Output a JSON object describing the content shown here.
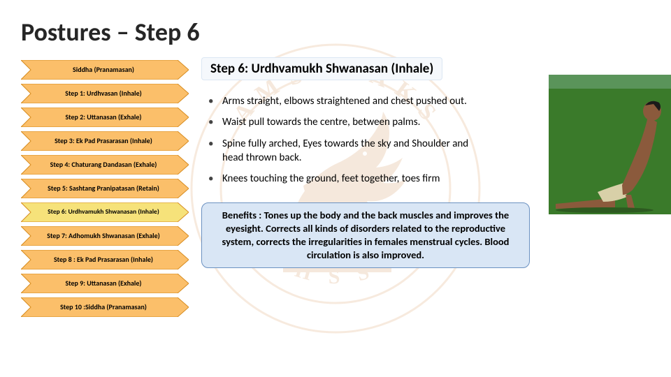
{
  "title": "Postures – Step 6",
  "nav": {
    "fill": "#fbbf6a",
    "stroke": "#d68b1e",
    "highlight_fill": "#f6e27a",
    "items": [
      {
        "label": "Siddha (Pranamasan)",
        "highlight": false
      },
      {
        "label": "Step 1: Urdhvasan (Inhale)",
        "highlight": false
      },
      {
        "label": "Step 2: Uttanasan (Exhale)",
        "highlight": false
      },
      {
        "label": "Step 3: Ek Pad Prasarasan (Inhale)",
        "highlight": false
      },
      {
        "label": "Step 4: Chaturang Dandasan (Exhale)",
        "highlight": false
      },
      {
        "label": "Step 5: Sashtang Pranipatasan (Retain)",
        "highlight": false
      },
      {
        "label": "Step  6: Urdhvamukh Shwanasan (Inhale)",
        "highlight": true,
        "twoLine": true
      },
      {
        "label": "Step 7: Adhomukh Shwanasan (Exhale)",
        "highlight": false
      },
      {
        "label": "Step 8 : Ek Pad Prasarasan (Inhale)",
        "highlight": false
      },
      {
        "label": "Step 9: Uttanasan (Exhale)",
        "highlight": false
      },
      {
        "label": "Step 10 :Siddha (Pranamasan)",
        "highlight": false
      }
    ]
  },
  "step_heading": "Step  6: Urdhvamukh Shwanasan (Inhale)",
  "bullets": [
    "Arms straight, elbows straightened and chest pushed out.",
    "Waist pull towards the centre, between palms.",
    "Spine fully arched, Eyes towards the sky and Shoulder and head thrown back.",
    "Knees touching the ground, feet together, toes firm"
  ],
  "benefits": "Benefits : Tones up the body and the back muscles and improves the eyesight. Corrects all kinds of disorders related to the reproductive system, corrects the irregularities in females menstrual cycles. Blood circulation is also improved.",
  "colors": {
    "heading_box_bg": "#f5f8fc",
    "heading_box_border": "#dbe7f3",
    "benefits_bg": "#d9e6f5",
    "benefits_border": "#6b91c1",
    "watermark_ring": "#d07a2a",
    "watermark_text": "#c36a1a",
    "watermark_lion": "#c36a1a",
    "pose_bg": "#3a7a2a",
    "pose_skin": "#8b5a3c",
    "pose_cloth": "#d8d0a8"
  }
}
